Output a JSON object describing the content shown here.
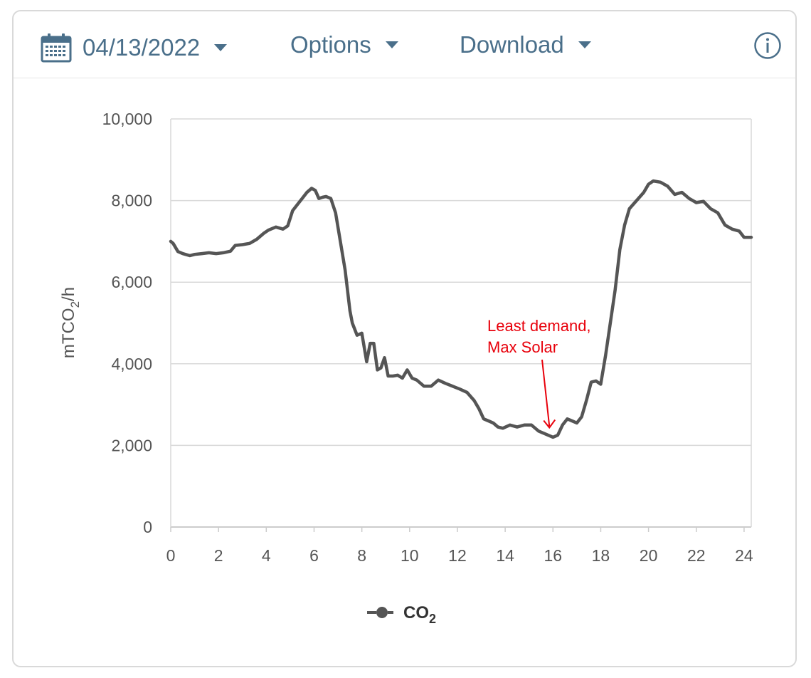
{
  "toolbar": {
    "date_label": "04/13/2022",
    "options_label": "Options",
    "download_label": "Download",
    "calendar_icon": "calendar-icon",
    "info_icon": "info-icon"
  },
  "colors": {
    "accent": "#4a6f8a",
    "line": "#555555",
    "annotation": "#e8000b",
    "grid": "#d9d9d9"
  },
  "chart_data": {
    "type": "line",
    "title": "",
    "xlabel": "",
    "ylabel": "mTCO",
    "ylabel_sub": "2",
    "ylabel_suffix": "/h",
    "xlim": [
      0,
      24.3
    ],
    "ylim": [
      0,
      10000
    ],
    "xticks": [
      0,
      2,
      4,
      6,
      8,
      10,
      12,
      14,
      16,
      18,
      20,
      22,
      24
    ],
    "yticks": [
      0,
      2000,
      4000,
      6000,
      8000,
      10000
    ],
    "ytick_labels": [
      "0",
      "2,000",
      "4,000",
      "6,000",
      "8,000",
      "10,000"
    ],
    "grid": true,
    "legend_position": "bottom",
    "series": [
      {
        "name": "CO",
        "name_sub": "2",
        "color": "#555555",
        "x": [
          0,
          0.1,
          0.3,
          0.5,
          0.8,
          1.0,
          1.3,
          1.6,
          1.9,
          2.2,
          2.5,
          2.7,
          3.0,
          3.3,
          3.6,
          3.9,
          4.1,
          4.4,
          4.7,
          4.9,
          5.1,
          5.3,
          5.5,
          5.7,
          5.9,
          6.05,
          6.2,
          6.35,
          6.5,
          6.7,
          6.9,
          7.1,
          7.3,
          7.5,
          7.6,
          7.8,
          8.0,
          8.2,
          8.35,
          8.5,
          8.65,
          8.8,
          8.95,
          9.1,
          9.3,
          9.5,
          9.7,
          9.9,
          10.1,
          10.3,
          10.6,
          10.9,
          11.2,
          11.5,
          11.8,
          12.1,
          12.4,
          12.7,
          12.9,
          13.1,
          13.3,
          13.5,
          13.7,
          13.9,
          14.2,
          14.5,
          14.8,
          15.1,
          15.4,
          15.6,
          15.8,
          16.0,
          16.2,
          16.4,
          16.6,
          16.8,
          17.0,
          17.2,
          17.4,
          17.6,
          17.8,
          18.0,
          18.2,
          18.4,
          18.6,
          18.8,
          19.0,
          19.2,
          19.5,
          19.8,
          20.0,
          20.2,
          20.5,
          20.8,
          21.1,
          21.4,
          21.7,
          22.0,
          22.3,
          22.6,
          22.9,
          23.2,
          23.5,
          23.8,
          24.0,
          24.3
        ],
        "values": [
          7000,
          6950,
          6750,
          6700,
          6650,
          6680,
          6700,
          6720,
          6700,
          6720,
          6760,
          6900,
          6920,
          6950,
          7050,
          7200,
          7280,
          7350,
          7300,
          7380,
          7750,
          7900,
          8050,
          8200,
          8300,
          8250,
          8050,
          8080,
          8100,
          8050,
          7700,
          7000,
          6300,
          5300,
          5000,
          4700,
          4750,
          4050,
          4500,
          4500,
          3850,
          3900,
          4150,
          3700,
          3700,
          3720,
          3650,
          3850,
          3650,
          3600,
          3450,
          3450,
          3600,
          3520,
          3450,
          3380,
          3300,
          3100,
          2900,
          2650,
          2600,
          2550,
          2450,
          2420,
          2500,
          2450,
          2500,
          2500,
          2350,
          2300,
          2250,
          2200,
          2250,
          2500,
          2650,
          2600,
          2550,
          2700,
          3100,
          3550,
          3580,
          3500,
          4200,
          5000,
          5800,
          6800,
          7400,
          7800,
          8000,
          8200,
          8400,
          8480,
          8450,
          8350,
          8150,
          8200,
          8050,
          7950,
          7980,
          7800,
          7700,
          7400,
          7300,
          7250,
          7100,
          7100
        ]
      }
    ],
    "annotations": [
      {
        "text_line1": "Least demand,",
        "text_line2": "Max Solar",
        "target_x": 15.85,
        "target_y": 2400
      }
    ]
  }
}
